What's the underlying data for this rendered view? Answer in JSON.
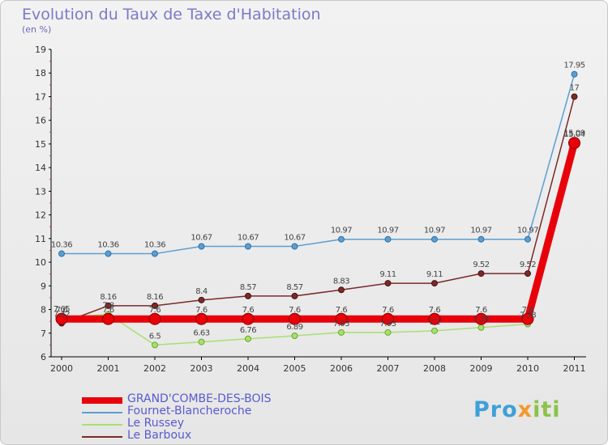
{
  "chart": {
    "title": "Evolution du Taux de Taxe d'Habitation",
    "unit": "(en %)"
  },
  "logo": {
    "text": "Proxiti"
  },
  "chart_data": {
    "type": "line",
    "title": "Evolution du Taux de Taxe d'Habitation",
    "subtitle": "(en %)",
    "xlabel": "",
    "ylabel": "",
    "ylim": [
      6,
      19
    ],
    "yticks": [
      6,
      7,
      8,
      9,
      10,
      11,
      12,
      13,
      14,
      15,
      16,
      17,
      18,
      19
    ],
    "categories": [
      "2000",
      "2001",
      "2002",
      "2003",
      "2004",
      "2005",
      "2006",
      "2007",
      "2008",
      "2009",
      "2010",
      "2011"
    ],
    "legend_position": "bottom-left",
    "series": [
      {
        "name": "GRAND'COMBE-DES-BOIS",
        "color": "#e8000a",
        "values": [
          7.6,
          7.6,
          7.6,
          7.6,
          7.6,
          7.6,
          7.6,
          7.6,
          7.6,
          7.6,
          7.6,
          15.04
        ],
        "labels": [
          "7.6",
          "7.6",
          "7.6",
          "7.6",
          "7.6",
          "7.6",
          "7.6",
          "7.6",
          "7.6",
          "7.6",
          "7.6",
          "15.04"
        ]
      },
      {
        "name": "Fournet-Blancheroche",
        "color": "#5c9ed0",
        "values": [
          10.36,
          10.36,
          10.36,
          10.67,
          10.67,
          10.67,
          10.97,
          10.97,
          10.97,
          10.97,
          10.97,
          17.95
        ],
        "labels": [
          "10.36",
          "10.36",
          "10.36",
          "10.67",
          "10.67",
          "10.67",
          "10.97",
          "10.97",
          "10.97",
          "10.97",
          "10.97",
          "17.95"
        ]
      },
      {
        "name": "Le Russey",
        "color": "#a8e070",
        "values": [
          7.65,
          7.8,
          6.5,
          6.63,
          6.76,
          6.89,
          7.03,
          7.03,
          7.1,
          7.24,
          7.38,
          15.09
        ],
        "labels": [
          "7.65",
          "7.8",
          "6.5",
          "6.63",
          "6.76",
          "6.89",
          "7.03",
          "7.03",
          "7.1",
          "7.24",
          "7.38",
          "15.09"
        ]
      },
      {
        "name": "Le Barboux",
        "color": "#7a2a2a",
        "values": [
          7.42,
          8.16,
          8.16,
          8.4,
          8.57,
          8.57,
          8.83,
          9.11,
          9.11,
          9.52,
          9.52,
          17
        ],
        "labels": [
          "7.42",
          "8.16",
          "8.16",
          "8.4",
          "8.57",
          "8.57",
          "8.83",
          "9.11",
          "9.11",
          "9.52",
          "9.52",
          "17"
        ]
      }
    ]
  }
}
